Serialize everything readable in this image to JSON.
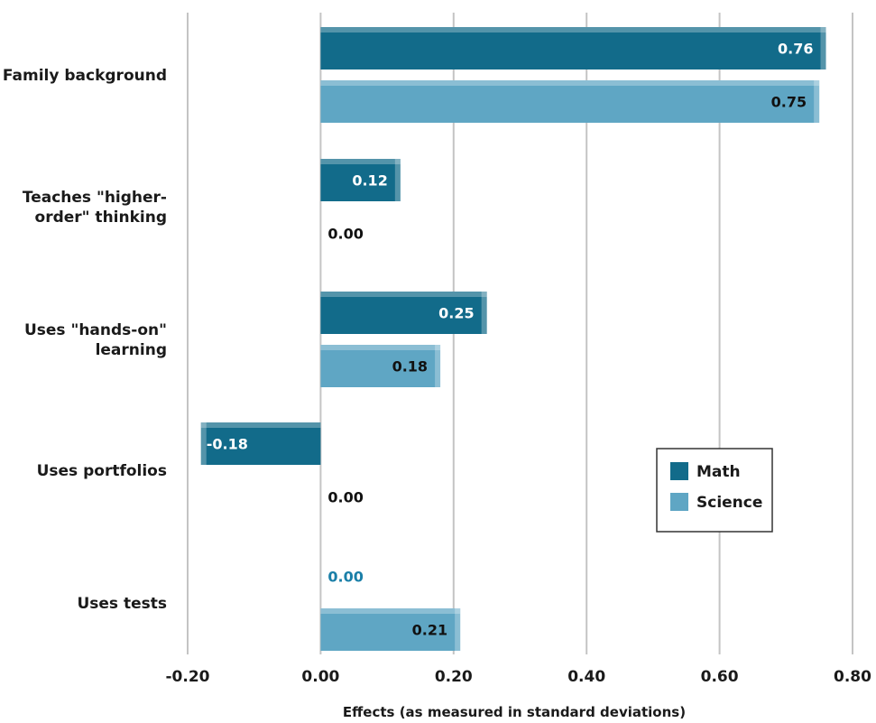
{
  "chart_data": {
    "type": "bar",
    "orientation": "horizontal",
    "categories": [
      [
        "Family background"
      ],
      [
        "Teaches \"higher-",
        "order\" thinking"
      ],
      [
        "Uses \"hands-on\"",
        "learning"
      ],
      [
        "Uses portfolios"
      ],
      [
        "Uses tests"
      ]
    ],
    "series": [
      {
        "name": "Math",
        "color": "#126b8a",
        "values": [
          0.76,
          0.12,
          0.25,
          -0.18,
          0.0
        ],
        "labels": [
          "0.76",
          "0.12",
          "0.25",
          "-0.18",
          "0.00"
        ]
      },
      {
        "name": "Science",
        "color": "#5fa6c4",
        "values": [
          0.75,
          0.0,
          0.18,
          0.0,
          0.21
        ],
        "labels": [
          "0.75",
          "0.00",
          "0.18",
          "0.00",
          "0.21"
        ]
      }
    ],
    "xlabel": "Effects (as measured in standard deviations)",
    "xlim": [
      -0.2,
      0.8
    ],
    "xticks": [
      -0.2,
      0.0,
      0.2,
      0.4,
      0.6,
      0.8
    ],
    "xtick_labels": [
      "-0.20",
      "0.00",
      "0.20",
      "0.40",
      "0.60",
      "0.80"
    ],
    "grid": true,
    "legend_position": "lower-right"
  }
}
